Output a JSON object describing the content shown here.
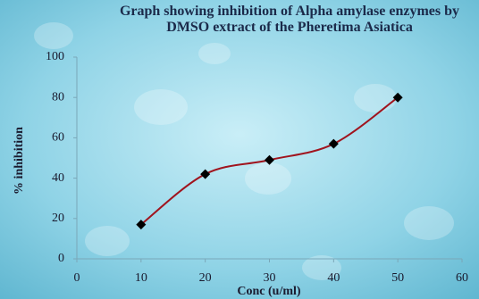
{
  "chart_data": {
    "type": "line",
    "title": "Graph showing inhibition of Alpha amylase enzymes by DMSO  extract of the Pheretima Asiatica",
    "x_label": "Conc (u/ml)",
    "y_label": "% inhibition",
    "series": [
      {
        "name": "% inhibition",
        "color": "#a0141e",
        "marker_color": "#000000",
        "x": [
          10,
          20,
          30,
          40,
          50
        ],
        "values": [
          17,
          42,
          49,
          57,
          80
        ]
      }
    ],
    "xlim": [
      0,
      60
    ],
    "xticks": [
      0,
      10,
      20,
      30,
      40,
      50,
      60
    ],
    "ylim": [
      0,
      100
    ],
    "yticks": [
      0,
      20,
      40,
      60,
      80,
      100
    ],
    "smooth": true
  }
}
